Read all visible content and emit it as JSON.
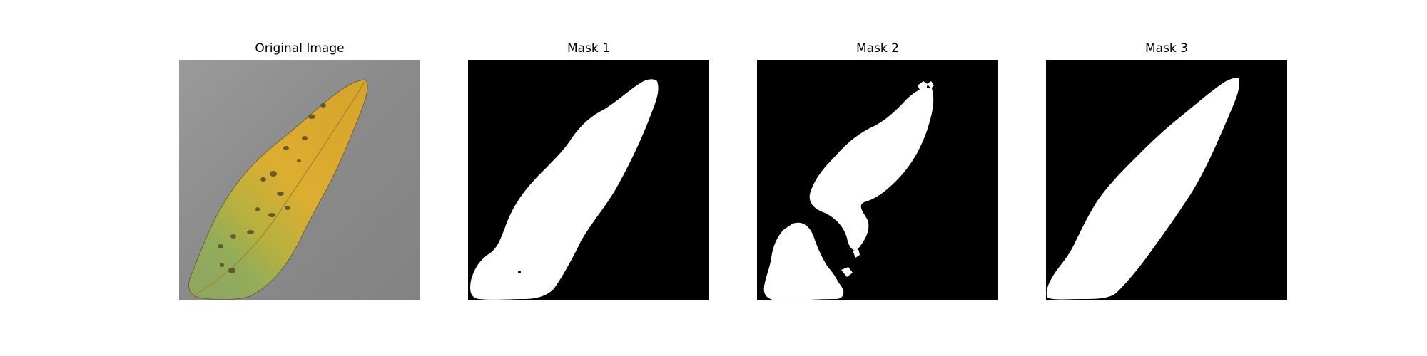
{
  "figure": {
    "panels": [
      {
        "title": "Original Image",
        "kind": "photo",
        "content": "yellow-green diseased leaf on grey background"
      },
      {
        "title": "Mask 1",
        "kind": "binary-mask"
      },
      {
        "title": "Mask 2",
        "kind": "binary-mask"
      },
      {
        "title": "Mask 3",
        "kind": "binary-mask"
      }
    ],
    "colors": {
      "mask_background": "#000000",
      "mask_foreground": "#ffffff",
      "photo_background": "#8e8e8e",
      "leaf_yellow": "#d9a827",
      "leaf_green": "#8fae5a",
      "lesion": "#5a4a2c"
    }
  }
}
